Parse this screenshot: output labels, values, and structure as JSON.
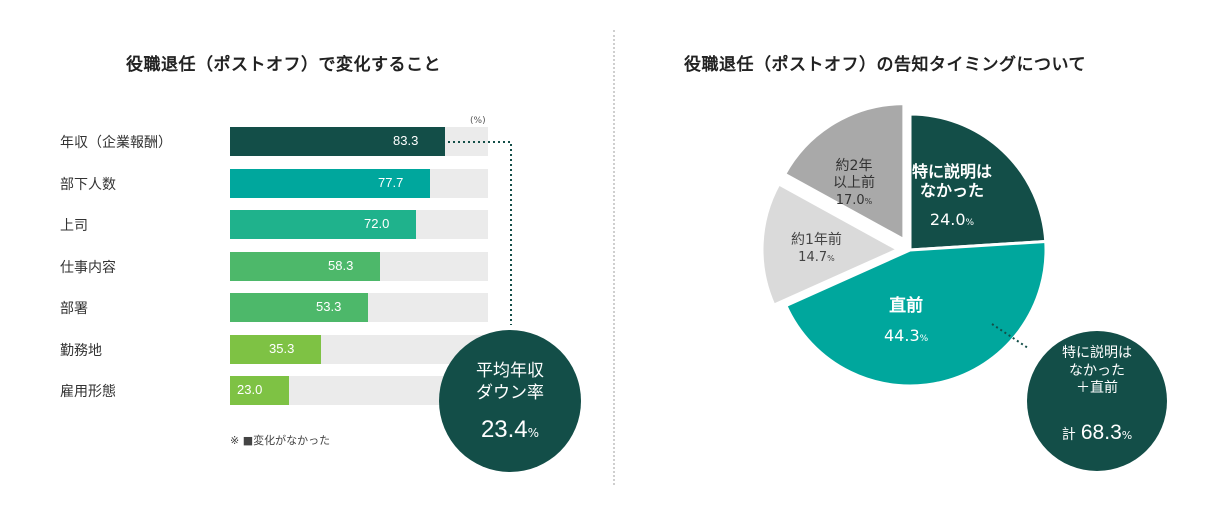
{
  "left": {
    "title": "役職退任（ポストオフ）で変化すること",
    "unit": "(%)",
    "footnote": "※ ■変化がなかった",
    "callout": {
      "line1": "平均年収",
      "line2": "ダウン率",
      "value": "23.4",
      "unit": "%"
    }
  },
  "right": {
    "title": "役職退任（ポストオフ）の告知タイミングについて",
    "callout": {
      "line1": "特に説明は",
      "line2": "なかった",
      "line3": "＋直前",
      "prefix": "計",
      "value": "68.3",
      "unit": "%"
    }
  },
  "colors": {
    "dark": "#134e48",
    "teal": "#00a79d",
    "green_mid": "#1fb28c",
    "green": "#4db86a",
    "lime": "#7ec244",
    "gray_light": "#dadada",
    "gray": "#a9a9a9",
    "track": "#ebebeb"
  },
  "chart_data": [
    {
      "type": "bar",
      "title": "役職退任（ポストオフ）で変化すること",
      "categories": [
        "年収（企業報酬）",
        "部下人数",
        "上司",
        "仕事内容",
        "部署",
        "勤務地",
        "雇用形態"
      ],
      "values": [
        83.3,
        77.7,
        72.0,
        58.3,
        53.3,
        35.3,
        23.0
      ],
      "value_labels": [
        "83.3",
        "77.7",
        "72.0",
        "58.3",
        "53.3",
        "35.3",
        "23.0"
      ],
      "bar_colors": [
        "#134e48",
        "#00a79d",
        "#1fb28c",
        "#4db86a",
        "#4db86a",
        "#7ec244",
        "#7ec244"
      ],
      "xlim": [
        0,
        100
      ],
      "unit": "(%)"
    },
    {
      "type": "pie",
      "title": "役職退任（ポストオフ）の告知タイミングについて",
      "slices": [
        {
          "label": "特に説明はなかった",
          "lines": [
            "特に説明は",
            "なかった"
          ],
          "value": 24.0,
          "value_label": "24.0",
          "color": "#134e48"
        },
        {
          "label": "直前",
          "lines": [
            "直前"
          ],
          "value": 44.3,
          "value_label": "44.3",
          "color": "#00a79d"
        },
        {
          "label": "約1年前",
          "lines": [
            "約1年前"
          ],
          "value": 14.7,
          "value_label": "14.7",
          "color": "#dadada"
        },
        {
          "label": "約2年以上前",
          "lines": [
            "約2年",
            "以上前"
          ],
          "value": 17.0,
          "value_label": "17.0",
          "color": "#a9a9a9"
        }
      ],
      "unit": "%"
    }
  ]
}
